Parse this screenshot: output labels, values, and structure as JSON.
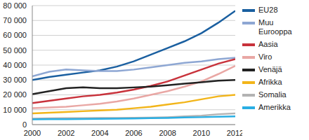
{
  "chart_data": {
    "type": "line",
    "x": [
      2000,
      2001,
      2002,
      2003,
      2004,
      2005,
      2006,
      2007,
      2008,
      2009,
      2010,
      2011,
      2012
    ],
    "xlim": [
      2000,
      2012
    ],
    "xticks": [
      2000,
      2002,
      2004,
      2006,
      2008,
      2010,
      2012
    ],
    "ylim": [
      0,
      80000
    ],
    "yticks": [
      0,
      {
        "value": 10000,
        "label": "10 000"
      },
      {
        "value": 20000,
        "label": "20 000"
      },
      {
        "value": 30000,
        "label": "30 000"
      },
      {
        "value": 40000,
        "label": "40 000"
      },
      {
        "value": 50000,
        "label": "50 000"
      },
      {
        "value": 60000,
        "label": "60 000"
      },
      {
        "value": 70000,
        "label": "70 000"
      },
      {
        "value": 80000,
        "label": "80 000"
      }
    ],
    "grid": true,
    "legend": "right",
    "series": [
      {
        "name": "EU28",
        "color": "#1a5fa0",
        "values": [
          30000,
          32000,
          33500,
          35000,
          36500,
          39000,
          42500,
          47000,
          51500,
          56000,
          61500,
          68500,
          76500
        ]
      },
      {
        "name": "Muu Eurooppa",
        "color": "#8ea7d3",
        "values": [
          32500,
          35500,
          37000,
          36500,
          36000,
          36000,
          37000,
          38500,
          40000,
          41500,
          42500,
          44000,
          45000
        ]
      },
      {
        "name": "Aasia",
        "color": "#c8323b",
        "values": [
          14500,
          16000,
          17500,
          19000,
          20000,
          21500,
          23500,
          26000,
          29000,
          33000,
          37000,
          41000,
          44000
        ]
      },
      {
        "name": "Viro",
        "color": "#e9a7a4",
        "values": [
          11000,
          11500,
          12000,
          13000,
          14000,
          15500,
          17500,
          20000,
          22500,
          25500,
          29000,
          34000,
          39500
        ]
      },
      {
        "name": "Venäjä",
        "color": "#222222",
        "values": [
          20500,
          22500,
          24500,
          25000,
          24500,
          24500,
          25000,
          25500,
          26500,
          27500,
          28500,
          29500,
          30000
        ]
      },
      {
        "name": "Afrikka",
        "color": "#f2b51a",
        "values": [
          7500,
          8000,
          8500,
          9000,
          9500,
          10000,
          11000,
          12000,
          13500,
          15000,
          17000,
          19000,
          20000
        ]
      },
      {
        "name": "Somalia",
        "color": "#b3b3b3",
        "values": [
          4000,
          4200,
          4300,
          4400,
          4500,
          4500,
          4600,
          4700,
          5000,
          5500,
          6000,
          7000,
          7500
        ]
      },
      {
        "name": "Amerikka",
        "color": "#29aee3",
        "values": [
          3500,
          3600,
          3700,
          3800,
          3900,
          4000,
          4100,
          4300,
          4500,
          4800,
          5000,
          5300,
          5500
        ]
      }
    ]
  }
}
